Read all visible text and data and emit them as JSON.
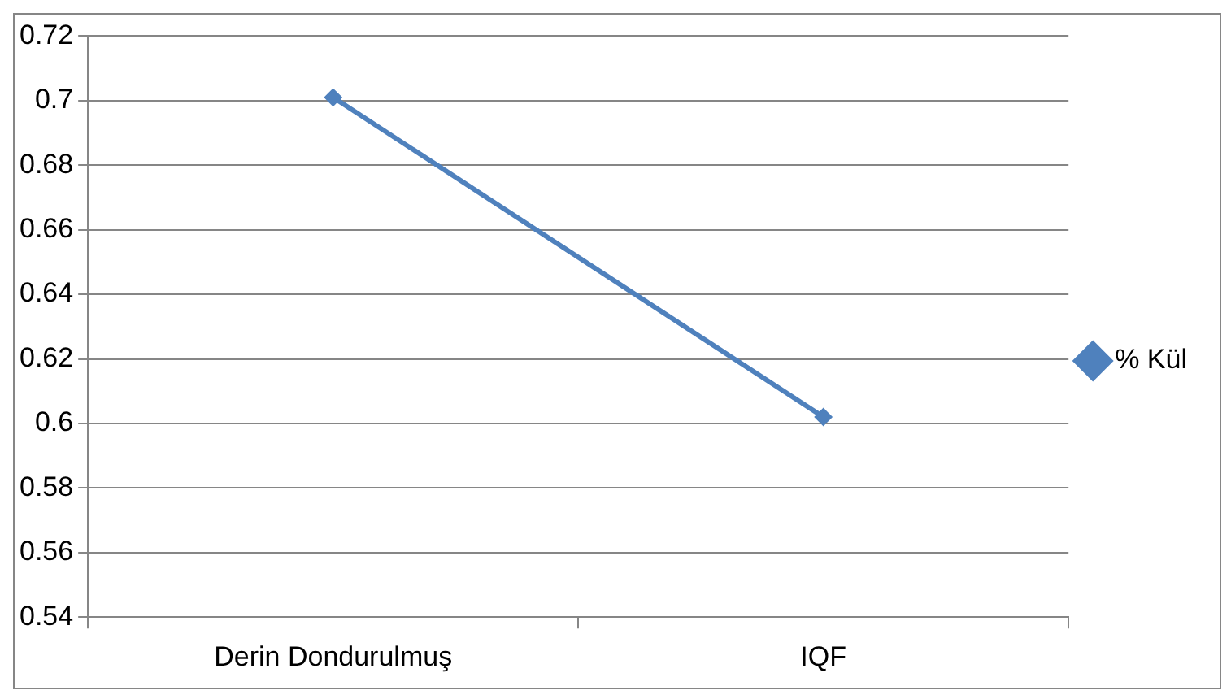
{
  "chart_data": {
    "type": "line",
    "categories": [
      "Derin Dondurulmuş",
      "IQF"
    ],
    "series": [
      {
        "name": "% Kül",
        "color": "#4f81bd",
        "values": [
          0.701,
          0.602
        ]
      }
    ],
    "ylim": [
      0.54,
      0.72
    ],
    "yticks": [
      0.54,
      0.56,
      0.58,
      0.6,
      0.62,
      0.64,
      0.66,
      0.68,
      0.7,
      0.72
    ],
    "grid": "y",
    "legend": "right",
    "marker": "diamond",
    "line_style": "solid"
  }
}
